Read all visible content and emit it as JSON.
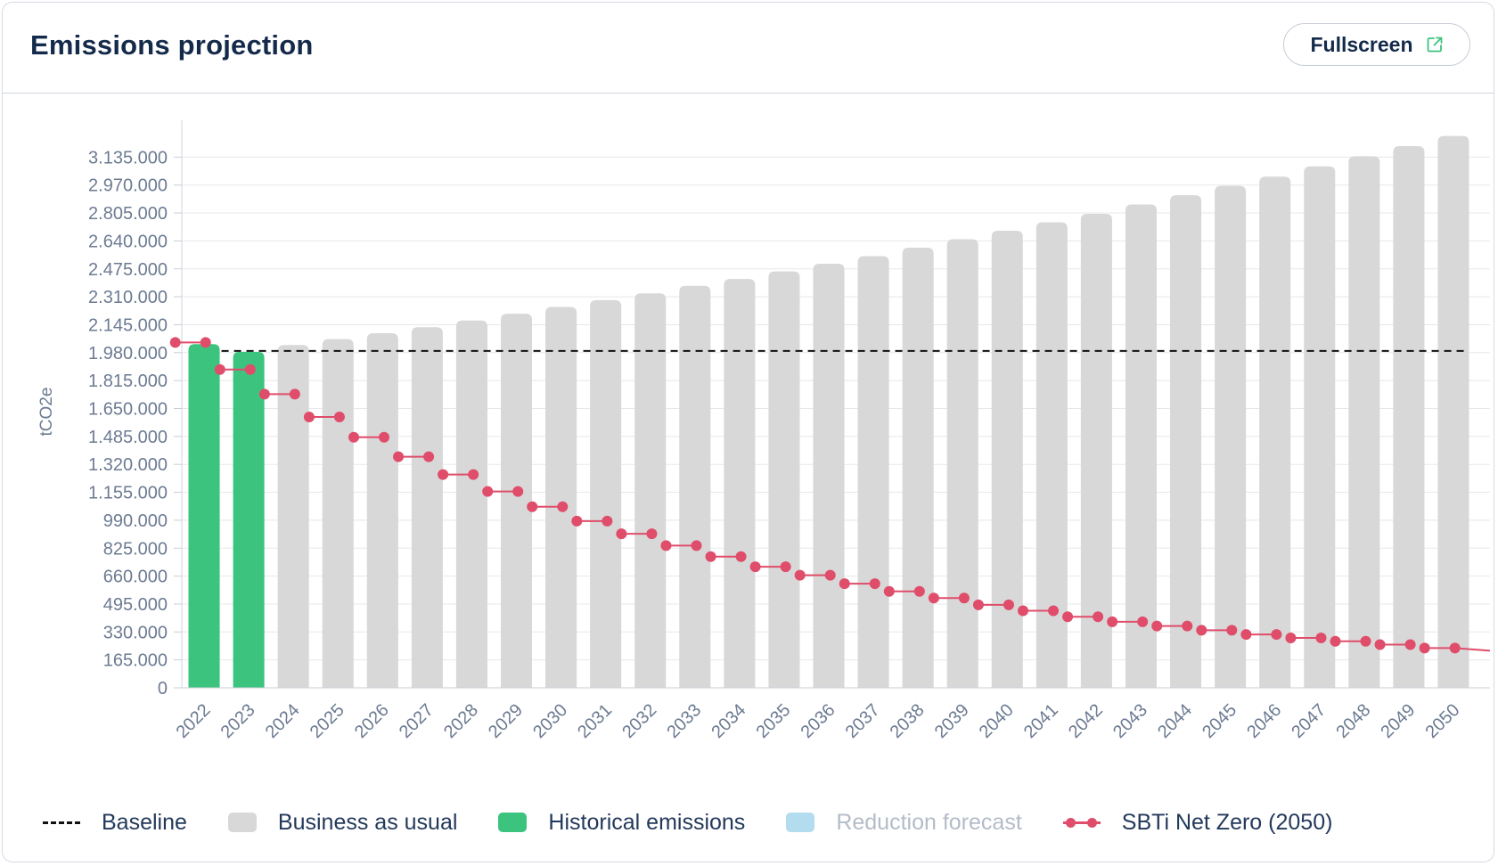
{
  "header": {
    "title": "Emissions projection",
    "fullscreen_label": "Fullscreen"
  },
  "colors": {
    "bau": "#d8d8d8",
    "historical": "#3cc47f",
    "reduction": "#b3dcee",
    "sbti": "#df4d6a",
    "baseline": "#111111",
    "axis_text": "#6c7b92",
    "grid": "#e6e8ec"
  },
  "legend": {
    "items": [
      {
        "label": "Baseline",
        "kind": "dash",
        "enabled": true
      },
      {
        "label": "Business as usual",
        "kind": "bau",
        "enabled": true
      },
      {
        "label": "Historical emissions",
        "kind": "historical",
        "enabled": true
      },
      {
        "label": "Reduction forecast",
        "kind": "reduction",
        "enabled": false
      },
      {
        "label": "SBTi Net Zero (2050)",
        "kind": "sbti",
        "enabled": true
      }
    ]
  },
  "chart_data": {
    "type": "bar",
    "ylabel": "tCO2e",
    "ylim": [
      0,
      3300000
    ],
    "yticks": [
      0,
      165000,
      330000,
      495000,
      660000,
      825000,
      990000,
      1155000,
      1320000,
      1485000,
      1650000,
      1815000,
      1980000,
      2145000,
      2310000,
      2475000,
      2640000,
      2805000,
      2970000,
      3135000
    ],
    "ytick_labels": [
      "0",
      "165.000",
      "330.000",
      "495.000",
      "660.000",
      "825.000",
      "990.000",
      "1.155.000",
      "1.320.000",
      "1.485.000",
      "1.650.000",
      "1.815.000",
      "1.980.000",
      "2.145.000",
      "2.310.000",
      "2.475.000",
      "2.640.000",
      "2.805.000",
      "2.970.000",
      "3.135.000"
    ],
    "categories": [
      "2022",
      "2023",
      "2024",
      "2025",
      "2026",
      "2027",
      "2028",
      "2029",
      "2030",
      "2031",
      "2032",
      "2033",
      "2034",
      "2035",
      "2036",
      "2037",
      "2038",
      "2039",
      "2040",
      "2041",
      "2042",
      "2043",
      "2044",
      "2045",
      "2046",
      "2047",
      "2048",
      "2049",
      "2050"
    ],
    "grid": true,
    "legend_position": "bottom",
    "series": [
      {
        "name": "Historical emissions",
        "kind": "bar",
        "values": [
          2030000,
          1985000,
          null,
          null,
          null,
          null,
          null,
          null,
          null,
          null,
          null,
          null,
          null,
          null,
          null,
          null,
          null,
          null,
          null,
          null,
          null,
          null,
          null,
          null,
          null,
          null,
          null,
          null,
          null
        ]
      },
      {
        "name": "Business as usual",
        "kind": "bar",
        "values": [
          null,
          null,
          2025000,
          2060000,
          2095000,
          2130000,
          2170000,
          2210000,
          2250000,
          2290000,
          2330000,
          2375000,
          2415000,
          2460000,
          2505000,
          2550000,
          2600000,
          2650000,
          2700000,
          2750000,
          2800000,
          2855000,
          2910000,
          2965000,
          3020000,
          3080000,
          3140000,
          3200000,
          3260000
        ]
      },
      {
        "name": "Baseline",
        "kind": "hline",
        "value": 1990000
      },
      {
        "name": "SBTi Net Zero (2050)",
        "kind": "step",
        "values": [
          2040000,
          1880000,
          1735000,
          1600000,
          1480000,
          1365000,
          1260000,
          1160000,
          1070000,
          985000,
          910000,
          840000,
          775000,
          715000,
          665000,
          615000,
          570000,
          530000,
          490000,
          455000,
          420000,
          390000,
          365000,
          340000,
          315000,
          295000,
          275000,
          255000,
          235000
        ]
      }
    ]
  }
}
